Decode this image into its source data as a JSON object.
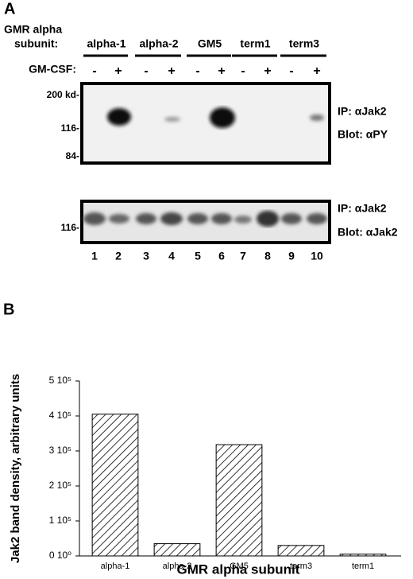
{
  "panel_a": {
    "label": "A",
    "row_title": [
      "GMR alpha",
      "subunit:"
    ],
    "groups": [
      "alpha-1",
      "alpha-2",
      "GM5",
      "term1",
      "term3"
    ],
    "treatment_label": "GM-CSF:",
    "treatments": [
      "-",
      "+",
      "-",
      "+",
      "-",
      "+",
      "-",
      "+",
      "-",
      "+"
    ],
    "blot_1": {
      "markers": [
        "200 kd-",
        "116-",
        "84-"
      ],
      "ip": "IP: αJak2",
      "blot": "Blot: αPY"
    },
    "blot_2": {
      "markers": [
        "116-"
      ],
      "ip": "IP: αJak2",
      "blot": "Blot: αJak2"
    },
    "lanes": [
      "1",
      "2",
      "3",
      "4",
      "5",
      "6",
      "7",
      "8",
      "9",
      "10"
    ]
  },
  "panel_b_label": "B",
  "chart_data": {
    "type": "bar",
    "ylabel": "Jak2 band density, arbitrary units",
    "xlabel": "GMR alpha subunit",
    "categories": [
      "alpha-1",
      "alpha-2",
      "GM5",
      "term3",
      "term1"
    ],
    "values": [
      405000,
      35000,
      318000,
      30000,
      5000
    ],
    "color": "#000000",
    "ylim": [
      0,
      500000
    ],
    "yticks": [
      {
        "value": 0,
        "label": "0 10⁰"
      },
      {
        "value": 100000,
        "label": "1 10⁵"
      },
      {
        "value": 200000,
        "label": "2 10⁵"
      },
      {
        "value": 300000,
        "label": "3 10⁵"
      },
      {
        "value": 400000,
        "label": "4 10⁵"
      },
      {
        "value": 500000,
        "label": "5 10⁵"
      }
    ]
  }
}
